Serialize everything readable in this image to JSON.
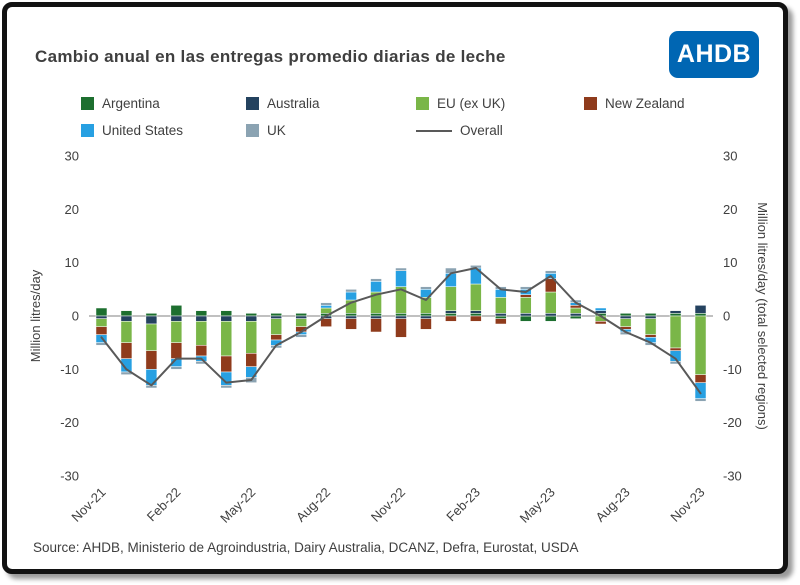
{
  "header": {
    "logo": "AHDB"
  },
  "footer": {
    "source": "Source: AHDB, Ministerio de Agroindustria, Dairy Australia, DCANZ, Defra, Eurostat, USDA"
  },
  "chart_data": {
    "type": "bar",
    "stacked": true,
    "title": "Cambio anual en las entregas promedio diarias de leche",
    "ylabel_left": "Million litres/day",
    "ylabel_right": "Million litres/day  (total selected regions)",
    "ylim": [
      -30,
      30
    ],
    "ytick_step": 10,
    "grid": false,
    "legend_position": "top",
    "xtick_every": 3,
    "x": [
      "Nov-21",
      "Dec-21",
      "Jan-22",
      "Feb-22",
      "Mar-22",
      "Apr-22",
      "May-22",
      "Jun-22",
      "Jul-22",
      "Aug-22",
      "Sep-22",
      "Oct-22",
      "Nov-22",
      "Dec-22",
      "Jan-23",
      "Feb-23",
      "Mar-23",
      "Apr-23",
      "May-23",
      "Jun-23",
      "Jul-23",
      "Aug-23",
      "Sep-23",
      "Oct-23",
      "Nov-23"
    ],
    "series": [
      {
        "name": "Argentina",
        "color": "#1d6f2f",
        "values": [
          1.5,
          1.0,
          0.5,
          2.0,
          1.0,
          1.0,
          0.5,
          0.5,
          0.5,
          0.5,
          0.5,
          0.5,
          0.5,
          0.5,
          0.5,
          0.5,
          -0.5,
          -1.0,
          -1.0,
          -0.5,
          0.5,
          0.5,
          0.5,
          0.5,
          0.5
        ]
      },
      {
        "name": "Australia",
        "color": "#24425f",
        "values": [
          -0.5,
          -1.0,
          -1.5,
          -1.0,
          -1.0,
          -1.0,
          -1.0,
          -0.5,
          -0.5,
          -0.5,
          -0.5,
          -0.5,
          -0.5,
          -0.5,
          0.5,
          0.5,
          0.5,
          0.5,
          0.5,
          0.5,
          0.5,
          -0.5,
          -0.5,
          0.5,
          1.5
        ]
      },
      {
        "name": "EU (ex UK)",
        "color": "#7ab648",
        "values": [
          -1.5,
          -4.0,
          -5.0,
          -4.0,
          -4.5,
          -6.5,
          -6.0,
          -3.0,
          -1.5,
          1.0,
          2.5,
          4.0,
          5.0,
          3.0,
          4.5,
          5.0,
          3.0,
          3.0,
          4.0,
          1.0,
          -1.0,
          -1.5,
          -3.0,
          -6.0,
          -11.0
        ]
      },
      {
        "name": "New Zealand",
        "color": "#8f3b1c",
        "values": [
          -1.5,
          -3.0,
          -3.5,
          -3.0,
          -2.0,
          -3.0,
          -2.5,
          -1.0,
          -1.0,
          -1.5,
          -2.0,
          -2.5,
          -3.5,
          -2.0,
          -1.0,
          -1.0,
          -1.0,
          0.5,
          2.5,
          0.5,
          -0.5,
          -0.5,
          -0.5,
          -0.5,
          -1.5
        ]
      },
      {
        "name": "United States",
        "color": "#27a0e2",
        "values": [
          -1.5,
          -2.5,
          -3.0,
          -1.5,
          -1.0,
          -2.5,
          -2.0,
          -1.0,
          -0.5,
          0.5,
          1.5,
          2.0,
          3.0,
          1.5,
          2.5,
          3.0,
          1.5,
          1.0,
          1.0,
          0.5,
          0.5,
          -0.5,
          -1.0,
          -2.0,
          -3.0
        ]
      },
      {
        "name": "UK",
        "color": "#8ba3b2",
        "values": [
          -0.5,
          -0.5,
          -0.5,
          -0.5,
          -0.5,
          -0.5,
          -1.0,
          -0.5,
          -0.5,
          0.5,
          0.5,
          0.5,
          0.5,
          0.5,
          1.0,
          0.5,
          0.5,
          0.5,
          0.5,
          0.5,
          0.0,
          -0.5,
          -0.5,
          -0.5,
          -0.5
        ]
      }
    ],
    "line": {
      "name": "Overall",
      "color": "#595959",
      "values": [
        -4,
        -10,
        -13,
        -8,
        -8,
        -12.5,
        -12,
        -5.5,
        -3,
        0,
        2.5,
        4,
        5,
        3,
        8,
        9,
        5,
        4.5,
        7.5,
        2.5,
        0,
        -3,
        -5,
        -8,
        -14.5
      ]
    }
  }
}
